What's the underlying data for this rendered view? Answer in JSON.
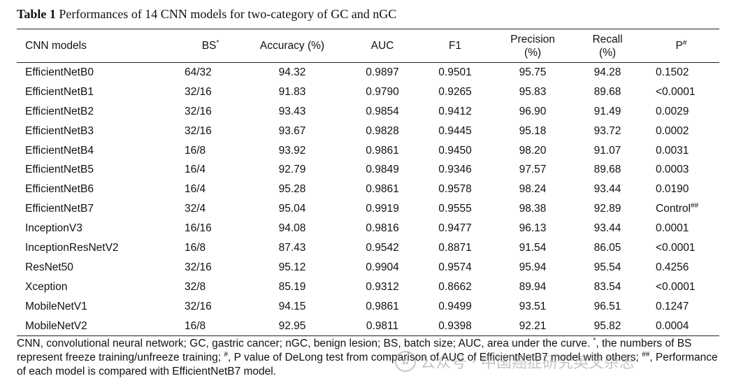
{
  "caption": {
    "label": "Table 1",
    "text": "Performances of 14 CNN models for two-category of GC and nGC"
  },
  "table": {
    "headers": {
      "model": "CNN models",
      "bs": "BS",
      "bs_sup": "*",
      "accuracy": "Accuracy (%)",
      "auc": "AUC",
      "f1": "F1",
      "precision_line1": "Precision",
      "precision_line2": "(%)",
      "recall_line1": "Recall",
      "recall_line2": "(%)",
      "p": "P",
      "p_sup": "#"
    },
    "rows": [
      {
        "model": "EfficientNetB0",
        "bs": "64/32",
        "accuracy": "94.32",
        "auc": "0.9897",
        "f1": "0.9501",
        "precision": "95.75",
        "recall": "94.28",
        "p": "0.1502",
        "p_sup": ""
      },
      {
        "model": "EfficientNetB1",
        "bs": "32/16",
        "accuracy": "91.83",
        "auc": "0.9790",
        "f1": "0.9265",
        "precision": "95.83",
        "recall": "89.68",
        "p": "<0.0001",
        "p_sup": ""
      },
      {
        "model": "EfficientNetB2",
        "bs": "32/16",
        "accuracy": "93.43",
        "auc": "0.9854",
        "f1": "0.9412",
        "precision": "96.90",
        "recall": "91.49",
        "p": "0.0029",
        "p_sup": ""
      },
      {
        "model": "EfficientNetB3",
        "bs": "32/16",
        "accuracy": "93.67",
        "auc": "0.9828",
        "f1": "0.9445",
        "precision": "95.18",
        "recall": "93.72",
        "p": "0.0002",
        "p_sup": ""
      },
      {
        "model": "EfficientNetB4",
        "bs": "16/8",
        "accuracy": "93.92",
        "auc": "0.9861",
        "f1": "0.9450",
        "precision": "98.20",
        "recall": "91.07",
        "p": "0.0031",
        "p_sup": ""
      },
      {
        "model": "EfficientNetB5",
        "bs": "16/4",
        "accuracy": "92.79",
        "auc": "0.9849",
        "f1": "0.9346",
        "precision": "97.57",
        "recall": "89.68",
        "p": "0.0003",
        "p_sup": ""
      },
      {
        "model": "EfficientNetB6",
        "bs": "16/4",
        "accuracy": "95.28",
        "auc": "0.9861",
        "f1": "0.9578",
        "precision": "98.24",
        "recall": "93.44",
        "p": "0.0190",
        "p_sup": ""
      },
      {
        "model": "EfficientNetB7",
        "bs": "32/4",
        "accuracy": "95.04",
        "auc": "0.9919",
        "f1": "0.9555",
        "precision": "98.38",
        "recall": "92.89",
        "p": "Control",
        "p_sup": "##"
      },
      {
        "model": "InceptionV3",
        "bs": "16/16",
        "accuracy": "94.08",
        "auc": "0.9816",
        "f1": "0.9477",
        "precision": "96.13",
        "recall": "93.44",
        "p": "0.0001",
        "p_sup": ""
      },
      {
        "model": "InceptionResNetV2",
        "bs": "16/8",
        "accuracy": "87.43",
        "auc": "0.9542",
        "f1": "0.8871",
        "precision": "91.54",
        "recall": "86.05",
        "p": "<0.0001",
        "p_sup": ""
      },
      {
        "model": "ResNet50",
        "bs": "32/16",
        "accuracy": "95.12",
        "auc": "0.9904",
        "f1": "0.9574",
        "precision": "95.94",
        "recall": "95.54",
        "p": "0.4256",
        "p_sup": ""
      },
      {
        "model": "Xception",
        "bs": "32/8",
        "accuracy": "85.19",
        "auc": "0.9312",
        "f1": "0.8662",
        "precision": "89.94",
        "recall": "83.54",
        "p": "<0.0001",
        "p_sup": ""
      },
      {
        "model": "MobileNetV1",
        "bs": "32/16",
        "accuracy": "94.15",
        "auc": "0.9861",
        "f1": "0.9499",
        "precision": "93.51",
        "recall": "96.51",
        "p": "0.1247",
        "p_sup": ""
      },
      {
        "model": "MobileNetV2",
        "bs": "16/8",
        "accuracy": "92.95",
        "auc": "0.9811",
        "f1": "0.9398",
        "precision": "92.21",
        "recall": "95.82",
        "p": "0.0004",
        "p_sup": ""
      }
    ]
  },
  "footnote": {
    "part1": "CNN, convolutional neural network; GC, gastric cancer; nGC, benign lesion; BS, batch size; AUC, area under the curve. ",
    "sup1": "*",
    "part2": ", the numbers of BS represent freeze training/unfreeze training; ",
    "sup2": "#",
    "part3": ", P value of DeLong test from comparison of AUC of EfficientNetB7 model with others; ",
    "sup3": "##",
    "part4": ", Performance of each model is compared with EfficientNetB7 model."
  },
  "watermark": {
    "logo_glyph": "✿",
    "text": "公众号 · 中国癌症研究英文杂志"
  }
}
